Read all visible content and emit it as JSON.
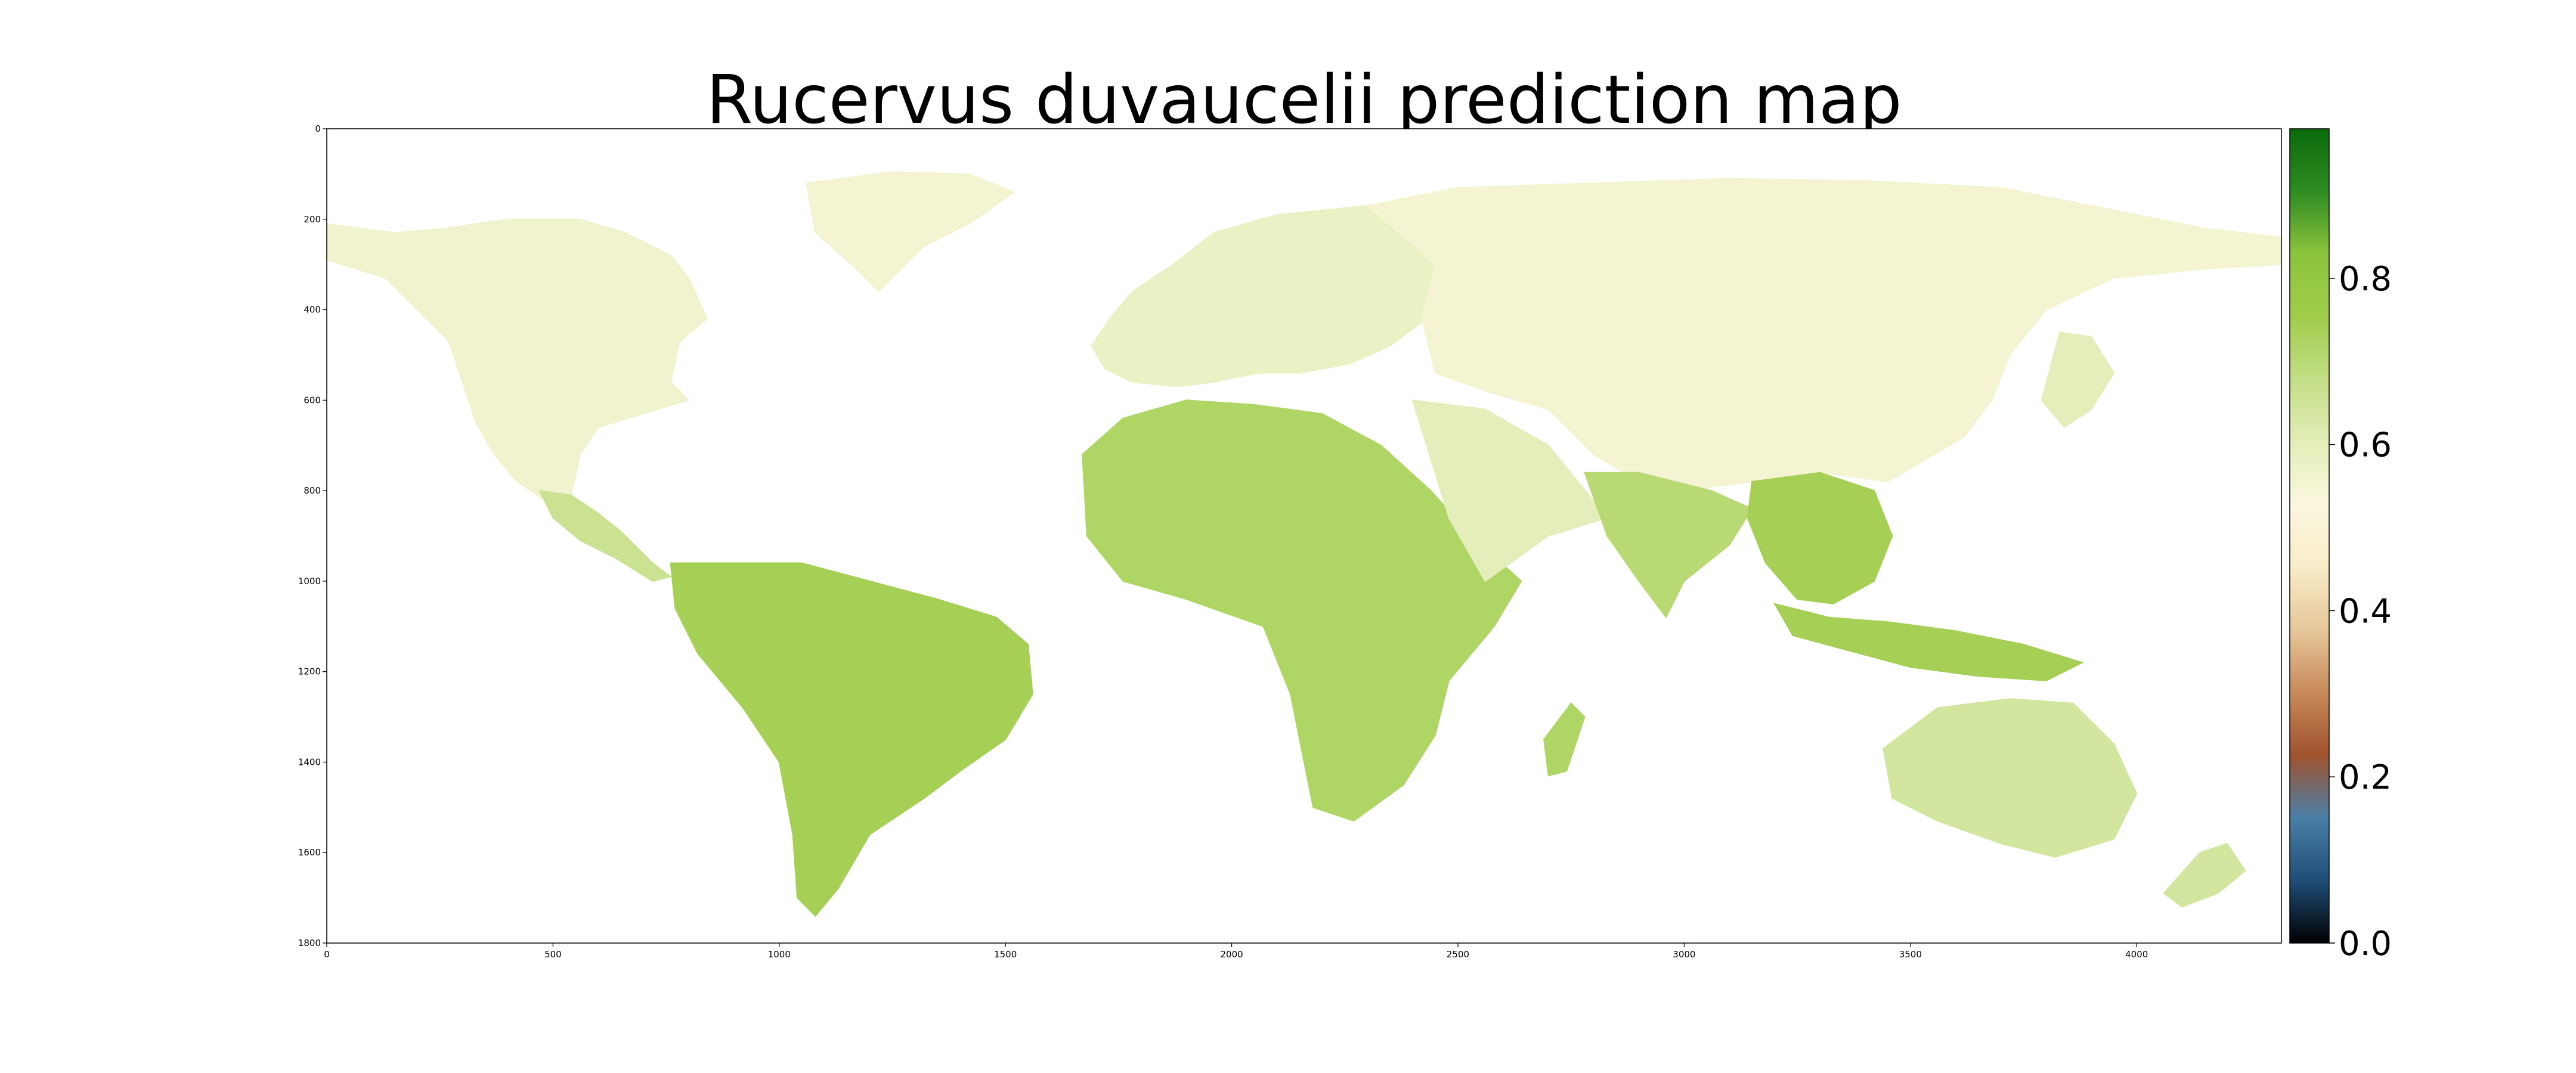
{
  "chart_data": {
    "type": "heatmap",
    "title": "Rucervus duvaucelii prediction map",
    "xlabel": "",
    "ylabel": "",
    "xlim": [
      0,
      4320
    ],
    "ylim": [
      1800,
      0
    ],
    "x_ticks": [
      "0",
      "500",
      "1000",
      "1500",
      "2000",
      "2500",
      "3000",
      "3500",
      "4000"
    ],
    "y_ticks": [
      "0",
      "200",
      "400",
      "600",
      "800",
      "1000",
      "1200",
      "1400",
      "1600",
      "1800"
    ],
    "colorbar": {
      "range": [
        0.0,
        0.98
      ],
      "ticks": [
        "0.0",
        "0.2",
        "0.4",
        "0.6",
        "0.8"
      ],
      "colormap": [
        "#000000",
        "#1f4e79",
        "#4a7fa8",
        "#a0522d",
        "#c88a5a",
        "#e6c79a",
        "#f8ecc8",
        "#fbf7df",
        "#e3eeb8",
        "#c3de86",
        "#9fcd4a",
        "#8cc43c",
        "#2e8b22",
        "#0b6a0b"
      ]
    },
    "regions": [
      {
        "name": "North America",
        "value": 0.56
      },
      {
        "name": "Greenland",
        "value": 0.55
      },
      {
        "name": "Central America",
        "value": 0.66
      },
      {
        "name": "South America",
        "value": 0.74
      },
      {
        "name": "Europe",
        "value": 0.58
      },
      {
        "name": "Africa",
        "value": 0.72
      },
      {
        "name": "Arabia",
        "value": 0.6
      },
      {
        "name": "Russia / Asia",
        "value": 0.55
      },
      {
        "name": "India",
        "value": 0.7
      },
      {
        "name": "Southeast Asia",
        "value": 0.74
      },
      {
        "name": "Indonesia",
        "value": 0.74
      },
      {
        "name": "Australia",
        "value": 0.64
      },
      {
        "name": "Madagascar",
        "value": 0.72
      },
      {
        "name": "Japan",
        "value": 0.6
      },
      {
        "name": "New Zealand",
        "value": 0.64
      }
    ]
  }
}
